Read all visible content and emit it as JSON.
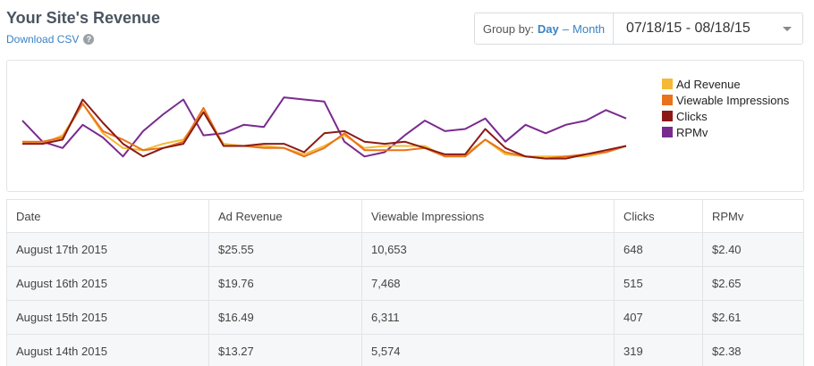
{
  "header": {
    "title": "Your Site's Revenue",
    "download_label": "Download CSV",
    "help_glyph": "?"
  },
  "controls": {
    "group_by_label": "Group by:",
    "group_by_day": "Day",
    "separator": "–",
    "group_by_month": "Month",
    "date_range": "07/18/15 - 08/18/15"
  },
  "chart_data": {
    "type": "line",
    "x": [
      1,
      2,
      3,
      4,
      5,
      6,
      7,
      8,
      9,
      10,
      11,
      12,
      13,
      14,
      15,
      16,
      17,
      18,
      19,
      20,
      21,
      22,
      23,
      24,
      25,
      26,
      27,
      28,
      29,
      30,
      31
    ],
    "series": [
      {
        "name": "Ad Revenue",
        "color": "#f5b936",
        "values": [
          40,
          39,
          43,
          58,
          44,
          37,
          36,
          39,
          41,
          54,
          39,
          38,
          38,
          37,
          34,
          38,
          43,
          37,
          38,
          38,
          38,
          33,
          34,
          41,
          34,
          33,
          33,
          33,
          33,
          35,
          38
        ]
      },
      {
        "name": "Viewable Impressions",
        "color": "#e8731c",
        "values": [
          40,
          40,
          42,
          58,
          45,
          41,
          36,
          37,
          40,
          56,
          38,
          38,
          37,
          37,
          33,
          37,
          44,
          36,
          36,
          36,
          37,
          33,
          33,
          41,
          35,
          33,
          32,
          33,
          34,
          35,
          38
        ]
      },
      {
        "name": "Clicks",
        "color": "#8b1a16",
        "values": [
          39,
          39,
          41,
          60,
          49,
          39,
          33,
          37,
          39,
          54,
          38,
          38,
          39,
          39,
          35,
          44,
          45,
          40,
          39,
          40,
          37,
          34,
          34,
          46,
          37,
          33,
          32,
          32,
          34,
          36,
          38
        ]
      },
      {
        "name": "RPMv",
        "color": "#7a2a8e",
        "values": [
          50,
          40,
          37,
          48,
          42,
          33,
          45,
          53,
          60,
          43,
          44,
          48,
          47,
          61,
          60,
          59,
          40,
          33,
          35,
          43,
          50,
          45,
          46,
          51,
          40,
          48,
          44,
          48,
          50,
          55,
          51
        ]
      }
    ],
    "ylim": [
      20,
      75
    ]
  },
  "table": {
    "columns": [
      "Date",
      "Ad Revenue",
      "Viewable Impressions",
      "Clicks",
      "RPMv"
    ],
    "rows": [
      [
        "August 17th 2015",
        "$25.55",
        "10,653",
        "648",
        "$2.40"
      ],
      [
        "August 16th 2015",
        "$19.76",
        "7,468",
        "515",
        "$2.65"
      ],
      [
        "August 15th 2015",
        "$16.49",
        "6,311",
        "407",
        "$2.61"
      ],
      [
        "August 14th 2015",
        "$13.27",
        "5,574",
        "319",
        "$2.38"
      ]
    ]
  }
}
